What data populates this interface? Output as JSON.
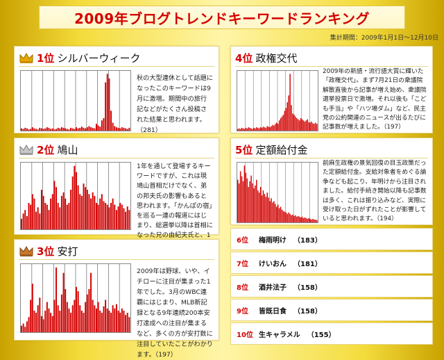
{
  "title": "2009年ブログトレンドキーワードランキング",
  "period": "集計期間：2009年1月1日～12月10日",
  "top": [
    {
      "rank": "1位",
      "keyword": "シルバーウィーク",
      "crown": "gold",
      "desc": "秋の大型連休として話題になったこのキーワードは9月に激増。期間中の旅行記などがたくさん投稿された結果と思われます。（281）",
      "chart_data": {
        "type": "bar",
        "values": [
          4,
          3,
          5,
          4,
          2,
          3,
          6,
          4,
          3,
          2,
          5,
          4,
          3,
          4,
          6,
          5,
          3,
          4,
          2,
          3,
          5,
          4,
          6,
          5,
          4,
          3,
          2,
          5,
          4,
          3,
          6,
          4,
          5,
          7,
          5,
          4,
          6,
          8,
          6,
          5,
          4,
          12,
          9,
          7,
          18,
          22,
          85,
          100,
          92,
          35,
          14,
          8,
          6,
          5,
          4,
          6,
          5,
          4,
          3,
          5
        ]
      }
    },
    {
      "rank": "2位",
      "keyword": "鳩山",
      "crown": "silver",
      "desc": "1年を通して登場するキーワードですが、これは現鳩山首相だけでなく、弟の邦夫氏の影響もあると思われます。「かんぽの宿」を巡る一連の報道にはじまり、総選挙以降は首相になった兄の由紀夫氏と、1年を通して「鳩山」が注目されました。（231）",
      "crown2": "silver",
      "chart_data": {
        "type": "bar",
        "values": [
          12,
          18,
          22,
          15,
          30,
          28,
          40,
          35,
          20,
          25,
          18,
          45,
          38,
          30,
          28,
          22,
          35,
          40,
          55,
          48,
          30,
          25,
          38,
          42,
          35,
          28,
          30,
          45,
          60,
          72,
          65,
          50,
          40,
          38,
          52,
          48,
          45,
          40,
          35,
          42,
          38,
          30,
          28,
          35,
          40,
          32,
          30,
          28,
          25,
          30,
          35,
          28,
          22,
          26,
          30,
          28,
          24,
          20,
          26,
          22
        ]
      }
    },
    {
      "rank": "3位",
      "keyword": "安打",
      "crown": "bronze",
      "desc": "2009年は野球、いや、イチローに注目が集まった1年でした。3月のWBC連覇にはじまり、MLB新記録となる9年連続200本安打達成への注目が集まるなど、多くの方が安打数に注目していたことがわかります。（197）",
      "chart_data": {
        "type": "bar",
        "values": [
          6,
          8,
          5,
          10,
          14,
          30,
          45,
          20,
          18,
          25,
          32,
          15,
          12,
          20,
          28,
          22,
          18,
          15,
          30,
          60,
          25,
          20,
          35,
          55,
          40,
          28,
          22,
          18,
          25,
          30,
          42,
          38,
          25,
          20,
          18,
          28,
          35,
          40,
          55,
          30,
          25,
          22,
          28,
          20,
          18,
          24,
          30,
          22,
          20,
          18,
          25,
          22,
          26,
          20,
          18,
          22,
          20,
          16,
          18,
          14
        ]
      }
    },
    {
      "rank": "4位",
      "keyword": "政権交代",
      "desc": "2009年の新語・流行語大賞に輝いた「政権交代」。まず7月21日の衆議院解散直後から記事が増え始め、衆議院選挙投票日で激増。それ以後も「こども手当」や「ハツ場ダム」など、民主党の公約関連のニュースが出るたびに記事数が増えました。（197）",
      "chart_data": {
        "type": "bar",
        "values": [
          3,
          4,
          3,
          5,
          4,
          3,
          5,
          4,
          6,
          5,
          4,
          3,
          5,
          4,
          6,
          5,
          4,
          6,
          5,
          7,
          6,
          5,
          8,
          7,
          6,
          8,
          10,
          9,
          12,
          14,
          12,
          18,
          22,
          25,
          28,
          35,
          40,
          50,
          62,
          100,
          45,
          30,
          28,
          25,
          22,
          20,
          18,
          22,
          20,
          18,
          16,
          18,
          20,
          15,
          14,
          16,
          13,
          12,
          14,
          12
        ]
      }
    },
    {
      "rank": "5位",
      "keyword": "定額給付金",
      "desc": "前麻生政権の景気回復の目玉政策だった定額給付金。支給対象者をめぐる論争なども起こり、年明けから注目されました。給付手続き開始以降も記事数は多く、これは振り込みなど、実際に受け取った日がずれたことが影響していると思われます。（194）",
      "chart_data": {
        "type": "bar",
        "values": [
          60,
          55,
          72,
          65,
          58,
          80,
          70,
          62,
          50,
          58,
          66,
          55,
          48,
          52,
          60,
          45,
          42,
          50,
          38,
          45,
          40,
          36,
          42,
          35,
          30,
          34,
          28,
          30,
          26,
          22,
          25,
          20,
          22,
          18,
          16,
          15,
          14,
          12,
          14,
          12,
          10,
          11,
          9,
          10,
          8,
          9,
          8,
          7,
          8,
          6,
          7,
          6,
          5,
          6,
          5,
          4,
          5,
          4,
          4,
          3
        ]
      }
    }
  ],
  "rest": [
    {
      "rank": "6位",
      "keyword": "梅雨明け",
      "count": "（183）"
    },
    {
      "rank": "7位",
      "keyword": "けいおん",
      "count": "（181）"
    },
    {
      "rank": "8位",
      "keyword": "酒井法子",
      "count": "（158）"
    },
    {
      "rank": "9位",
      "keyword": "皆既日食",
      "count": "（158）"
    },
    {
      "rank": "10位",
      "keyword": "生キャラメル",
      "count": "（155）"
    }
  ],
  "colors": {
    "accent": "#d40000",
    "gold": "#e6a700",
    "silver": "#aaaaaa",
    "bronze": "#b26a1e"
  }
}
